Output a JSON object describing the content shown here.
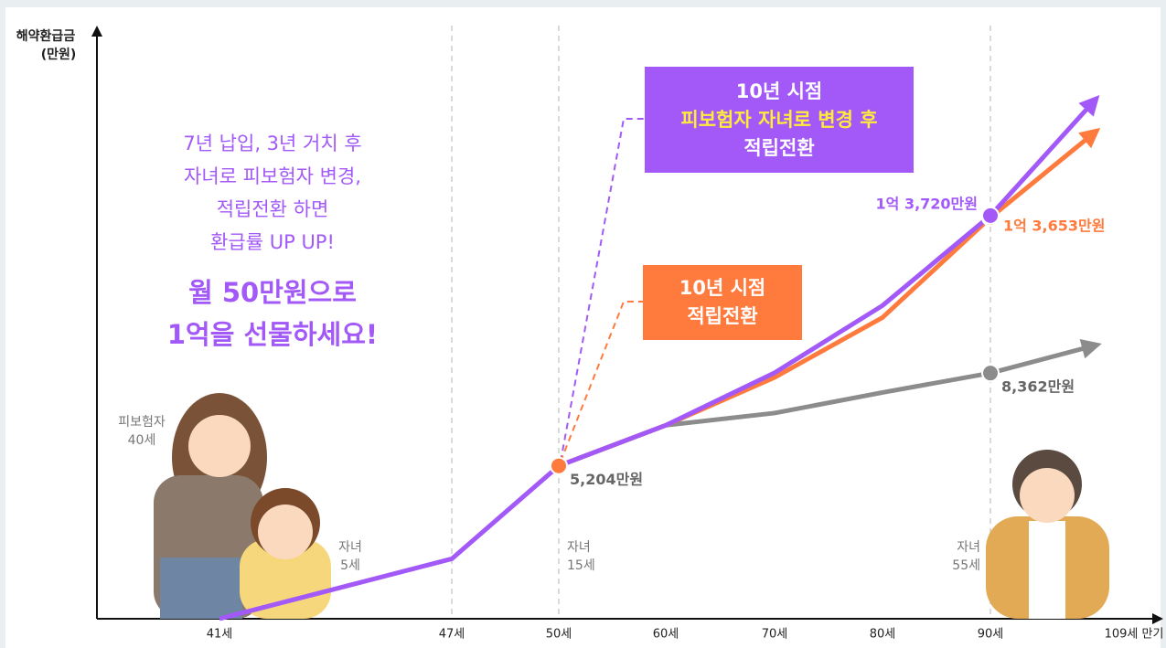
{
  "chart_data": {
    "type": "line",
    "y_label": [
      "해약환급금",
      "(만원)"
    ],
    "categories": [
      "41세",
      "47세",
      "50세",
      "60세",
      "70세",
      "80세",
      "90세",
      "109세 만기"
    ],
    "ylim": [
      0,
      20000
    ],
    "series": [
      {
        "color": "#8c8c8c",
        "values": [
          null,
          null,
          5204,
          6584,
          7000,
          7700,
          8362,
          9300
        ],
        "value_labels": [
          null,
          null,
          "5,204만원",
          null,
          null,
          null,
          "8,362만원",
          null
        ]
      },
      {
        "color": "#ff7a3d",
        "values": [
          null,
          null,
          5204,
          6584,
          8214,
          10251,
          13653,
          16550
        ],
        "value_labels": [
          null,
          null,
          null,
          null,
          null,
          null,
          "1억 3,653만원",
          null
        ]
      },
      {
        "color": "#a259f7",
        "values": [
          0,
          2038,
          5204,
          6584,
          8370,
          10659,
          13720,
          17640
        ],
        "value_labels": [
          null,
          null,
          null,
          null,
          null,
          null,
          "1억 3,720만원",
          null
        ]
      }
    ],
    "annotations": {
      "message": [
        "7년 납입, 3년 거치 후",
        "자녀로 피보험자 변경,",
        "적립전환 하면",
        "환급률 UP UP!"
      ],
      "headline": [
        "월 50만원으로",
        "1억을 선물하세요!"
      ],
      "callout_purple": [
        "10년 시점",
        "피보험자 자녀로 변경 후",
        "적립전환"
      ],
      "callout_orange": [
        "10년 시점",
        "적립전환"
      ],
      "ages": [
        [
          "피보험자",
          "40세"
        ],
        [
          "자녀",
          "5세"
        ],
        [
          "자녀",
          "15세"
        ],
        [
          "자녀",
          "55세"
        ]
      ]
    }
  }
}
